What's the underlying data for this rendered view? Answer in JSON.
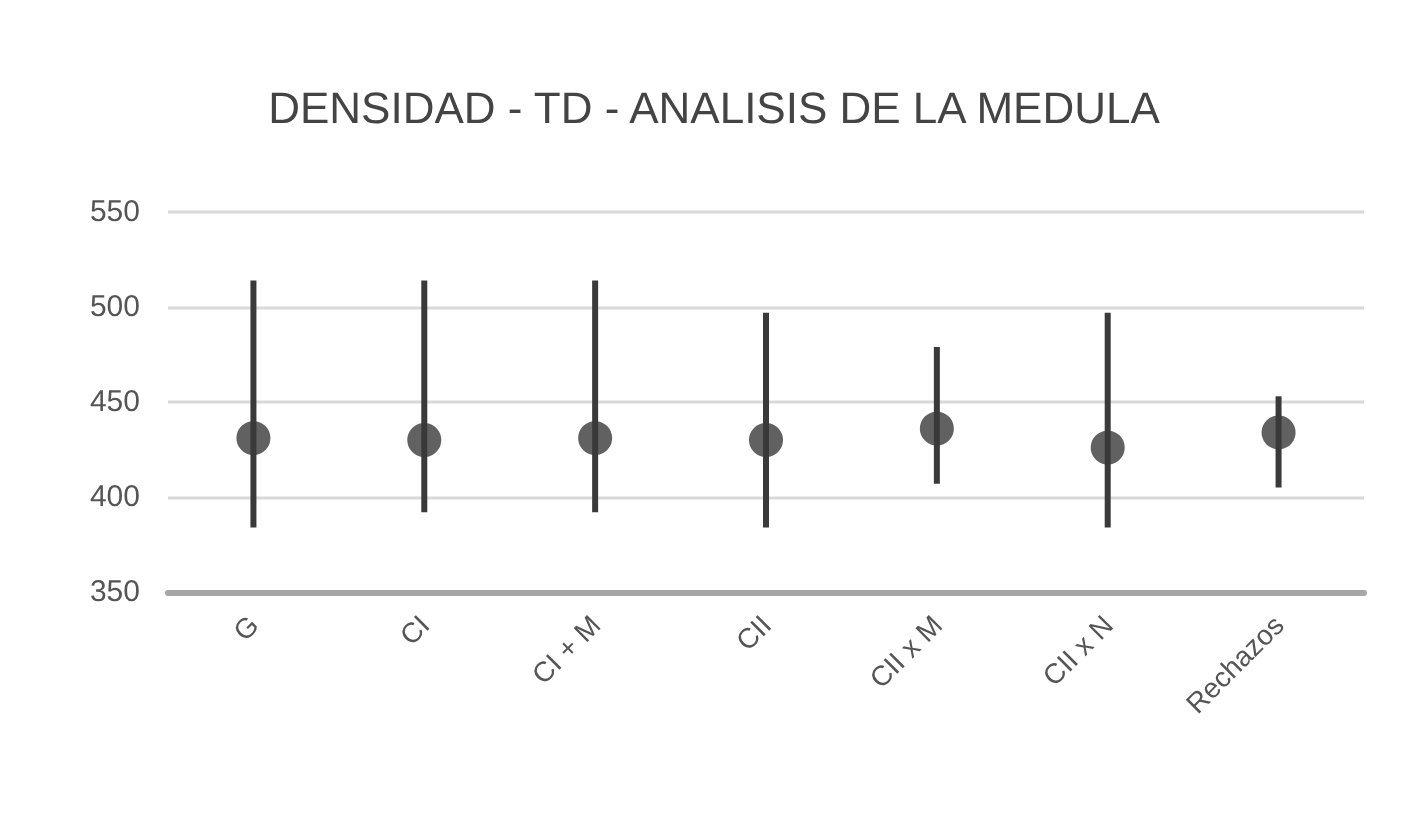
{
  "chart_data": {
    "type": "scatter",
    "title": "DENSIDAD - TD - ANALISIS DE LA MEDULA",
    "categories": [
      "G",
      "CI",
      "CI + M",
      "CII",
      "CII x M",
      "CII x N",
      "Rechazos"
    ],
    "series": [
      {
        "color": "#3a3a3a",
        "values": [
          431,
          430,
          431,
          430,
          436,
          426,
          434
        ],
        "errors": [
          [
            384,
            514
          ],
          [
            392,
            514
          ],
          [
            392,
            514
          ],
          [
            384,
            497
          ],
          [
            407,
            479
          ],
          [
            384,
            497
          ],
          [
            405,
            453
          ]
        ]
      }
    ],
    "ylim": [
      350,
      550
    ],
    "yticks": [
      350,
      400,
      450,
      500,
      550
    ],
    "grid": "y",
    "marker": "circle",
    "legend": false
  }
}
